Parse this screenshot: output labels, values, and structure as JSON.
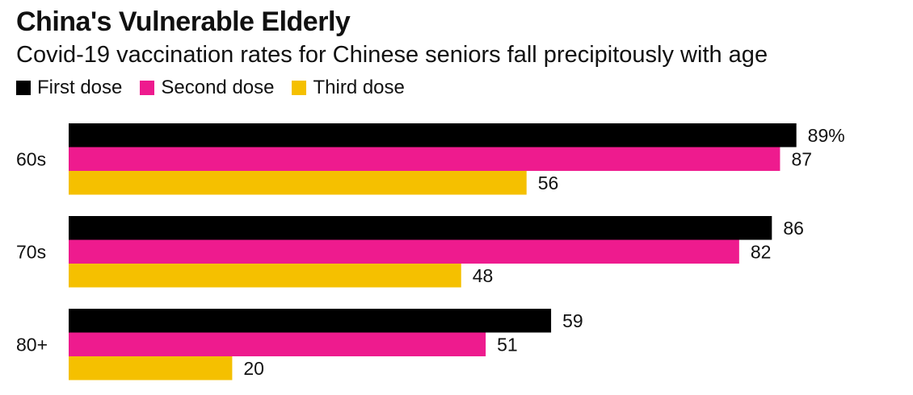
{
  "chart_data": {
    "type": "bar",
    "orientation": "horizontal",
    "title": "China's Vulnerable Elderly",
    "subtitle": "Covid-19 vaccination rates for Chinese seniors fall precipitously with age",
    "categories": [
      "60s",
      "70s",
      "80+"
    ],
    "series": [
      {
        "name": "First dose",
        "color": "#000000",
        "values": [
          89,
          86,
          59
        ],
        "labels": [
          "89%",
          "86",
          "59"
        ]
      },
      {
        "name": "Second dose",
        "color": "#ee1b8e",
        "values": [
          87,
          82,
          51
        ],
        "labels": [
          "87",
          "82",
          "51"
        ]
      },
      {
        "name": "Third dose",
        "color": "#f5c000",
        "values": [
          56,
          48,
          20
        ],
        "labels": [
          "56",
          "48",
          "20"
        ]
      }
    ],
    "xlim": [
      0,
      100
    ],
    "legend": "top-left",
    "grid": false
  }
}
